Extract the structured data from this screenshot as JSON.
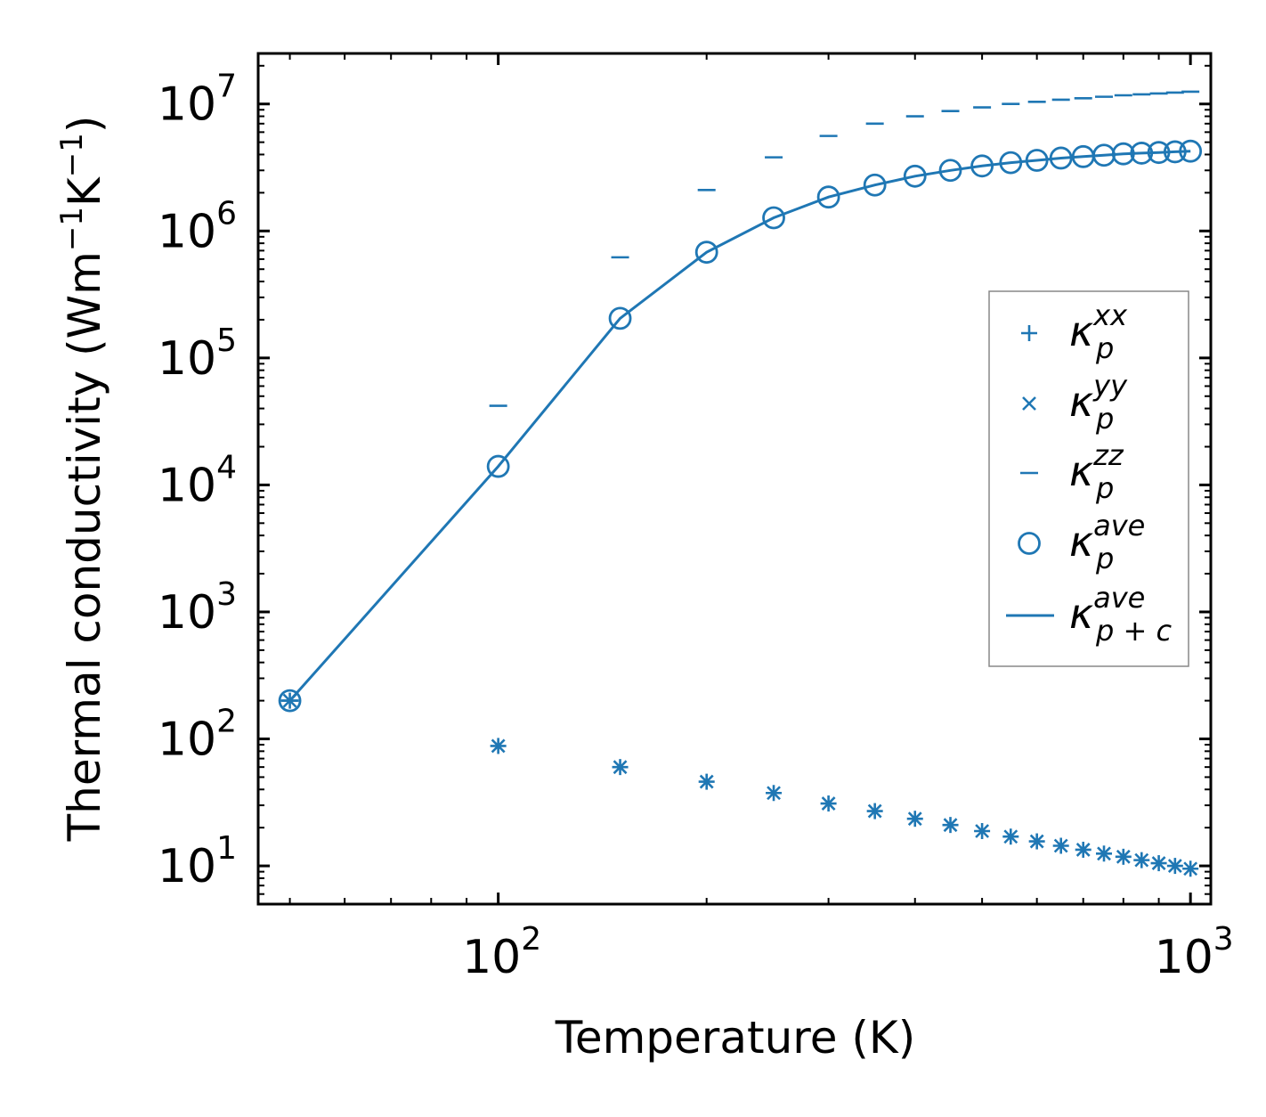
{
  "chart_data": {
    "type": "scatter",
    "xscale": "log",
    "yscale": "log",
    "xlabel": "Temperature (K)",
    "ylabel": "Thermal conductivity (Wm",
    "ylabel_units": {
      "exp1": "−1",
      "mid": "K",
      "exp2": "−1",
      "close": ")"
    },
    "xlim": [
      45,
      1070
    ],
    "ylim": [
      5,
      25000000
    ],
    "x_ticks": [
      {
        "base": "10",
        "exp": "2",
        "value": 100
      },
      {
        "base": "10",
        "exp": "3",
        "value": 1000
      }
    ],
    "y_ticks": [
      {
        "base": "10",
        "exp": "1",
        "value": 10
      },
      {
        "base": "10",
        "exp": "2",
        "value": 100
      },
      {
        "base": "10",
        "exp": "3",
        "value": 1000
      },
      {
        "base": "10",
        "exp": "4",
        "value": 10000
      },
      {
        "base": "10",
        "exp": "5",
        "value": 100000
      },
      {
        "base": "10",
        "exp": "6",
        "value": 1000000
      },
      {
        "base": "10",
        "exp": "7",
        "value": 10000000
      }
    ],
    "x": [
      50,
      100,
      150,
      200,
      250,
      300,
      350,
      400,
      450,
      500,
      550,
      600,
      650,
      700,
      750,
      800,
      850,
      900,
      950,
      1000
    ],
    "color": "#1f77b4",
    "series": [
      {
        "name": "kappa_p_xx",
        "symbol": "κ",
        "sub": "p",
        "sup": "xx",
        "marker": "plus",
        "values": [
          200,
          88,
          60,
          46,
          37.5,
          31,
          27,
          23.5,
          21,
          18.8,
          17,
          15.6,
          14.4,
          13.4,
          12.5,
          11.8,
          11.1,
          10.5,
          10,
          9.5
        ]
      },
      {
        "name": "kappa_p_yy",
        "symbol": "κ",
        "sub": "p",
        "sup": "yy",
        "marker": "x",
        "values": [
          200,
          88,
          60,
          46,
          37.5,
          31,
          27,
          23.5,
          21,
          18.8,
          17,
          15.6,
          14.4,
          13.4,
          12.5,
          11.8,
          11.1,
          10.5,
          10,
          9.5
        ]
      },
      {
        "name": "kappa_p_zz",
        "symbol": "κ",
        "sub": "p",
        "sup": "zz",
        "marker": "hline",
        "values": [
          200,
          42000,
          620000,
          2100000,
          3800000,
          5600000,
          7000000,
          8000000,
          8800000,
          9400000,
          10000000,
          10400000,
          10800000,
          11100000,
          11400000,
          11700000,
          11900000,
          12100000,
          12300000,
          12500000
        ]
      },
      {
        "name": "kappa_p_ave",
        "symbol": "κ",
        "sub": "p",
        "sup": "ave",
        "marker": "circle",
        "values": [
          200,
          14000,
          205000,
          680000,
          1270000,
          1850000,
          2300000,
          2700000,
          3000000,
          3250000,
          3450000,
          3600000,
          3750000,
          3850000,
          3950000,
          4050000,
          4100000,
          4150000,
          4200000,
          4250000
        ]
      },
      {
        "name": "kappa_pc_ave",
        "symbol": "κ",
        "sub": "p + c",
        "sup": "ave",
        "marker": "line",
        "values": [
          200,
          14000,
          205000,
          680000,
          1270000,
          1850000,
          2300000,
          2700000,
          3000000,
          3250000,
          3450000,
          3600000,
          3750000,
          3850000,
          3950000,
          4050000,
          4100000,
          4150000,
          4200000,
          4250000
        ]
      }
    ],
    "legend_position": "center-right"
  }
}
